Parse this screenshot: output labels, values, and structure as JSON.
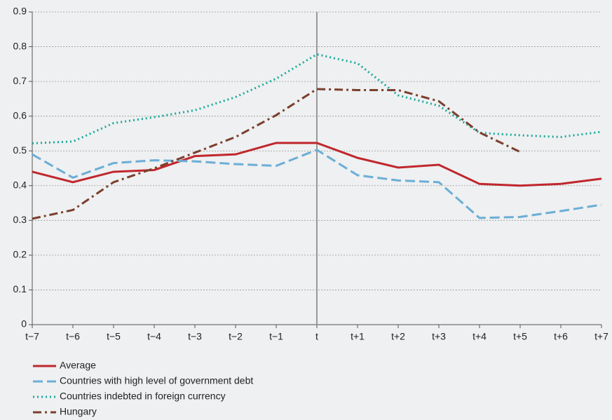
{
  "chart_data": {
    "type": "line",
    "categories": [
      "t−7",
      "t−6",
      "t−5",
      "t−4",
      "t−3",
      "t−2",
      "t−1",
      "t",
      "t+1",
      "t+2",
      "t+3",
      "t+4",
      "t+5",
      "t+6",
      "t+7"
    ],
    "series": [
      {
        "name": "Average",
        "color": "#c0272d",
        "style": "solid",
        "values": [
          0.44,
          0.41,
          0.44,
          0.445,
          0.485,
          0.49,
          0.523,
          0.523,
          0.48,
          0.452,
          0.46,
          0.405,
          0.4,
          0.405,
          0.42
        ]
      },
      {
        "name": "Countries with high level of government debt",
        "color": "#6baed6",
        "style": "dashed",
        "values": [
          0.49,
          0.423,
          0.465,
          0.473,
          0.47,
          0.462,
          0.457,
          0.503,
          0.43,
          0.415,
          0.41,
          0.307,
          0.31,
          0.327,
          0.345
        ]
      },
      {
        "name": "Countries indebted in foreign currency",
        "color": "#1aa89a",
        "style": "dotted",
        "values": [
          0.522,
          0.527,
          0.58,
          0.597,
          0.617,
          0.655,
          0.708,
          0.778,
          0.752,
          0.66,
          0.63,
          0.552,
          0.545,
          0.54,
          0.555
        ]
      },
      {
        "name": "Hungary",
        "color": "#7b3f2e",
        "style": "dashdot",
        "values": [
          0.305,
          0.33,
          0.41,
          0.45,
          0.495,
          0.54,
          0.603,
          0.678,
          0.675,
          0.675,
          0.643,
          0.553,
          0.497,
          null,
          null
        ]
      }
    ],
    "ylim": [
      0,
      0.9
    ],
    "yticks": [
      0,
      0.1,
      0.2,
      0.3,
      0.4,
      0.5,
      0.6,
      0.7,
      0.8,
      0.9
    ],
    "grid": true,
    "reference_line_category": "t",
    "legend": "bottom-left"
  }
}
